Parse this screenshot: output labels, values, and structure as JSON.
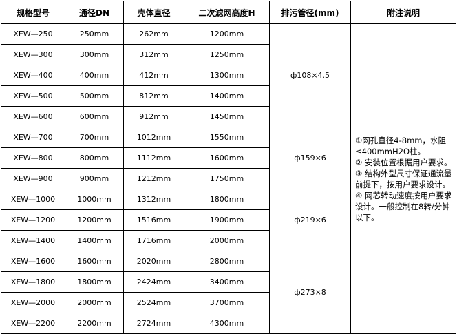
{
  "headers": [
    "规格型号",
    "通径DN",
    "壳体直径",
    "二次滤网高度H",
    "排污管径(mm)",
    "附注说明"
  ],
  "rows": [
    [
      "XEW—250",
      "250mm",
      "262mm",
      "1200mm"
    ],
    [
      "XEW—300",
      "300mm",
      "312mm",
      "1250mm"
    ],
    [
      "XEW—400",
      "400mm",
      "412mm",
      "1300mm"
    ],
    [
      "XEW—500",
      "500mm",
      "812mm",
      "1400mm"
    ],
    [
      "XEW—600",
      "600mm",
      "912mm",
      "1450mm"
    ],
    [
      "XEW—700",
      "700mm",
      "1012mm",
      "1550mm"
    ],
    [
      "XEW—800",
      "800mm",
      "1112mm",
      "1600mm"
    ],
    [
      "XEW—900",
      "900mm",
      "1212mm",
      "1750mm"
    ],
    [
      "XEW—1000",
      "1000mm",
      "1312mm",
      "1800mm"
    ],
    [
      "XEW—1200",
      "1200mm",
      "1516mm",
      "1900mm"
    ],
    [
      "XEW—1400",
      "1400mm",
      "1716mm",
      "2000mm"
    ],
    [
      "XEW—1600",
      "1600mm",
      "2020mm",
      "2800mm"
    ],
    [
      "XEW—1800",
      "1800mm",
      "2424mm",
      "3400mm"
    ],
    [
      "XEW—2000",
      "2000mm",
      "2524mm",
      "3700mm"
    ],
    [
      "XEW—2200",
      "2200mm",
      "2724mm",
      "4300mm"
    ]
  ],
  "drain_groups": [
    {
      "value": "ф108×4.5",
      "rows": 5
    },
    {
      "value": "ф159×6",
      "rows": 3
    },
    {
      "value": "ф219×6",
      "rows": 3
    },
    {
      "value": "ф273×8",
      "rows": 4
    }
  ],
  "notes": [
    "①网孔直径4-8mm，水阻≤400mmH2O柱。",
    "② 安装位置根据用户要求。",
    "③ 结构外型尺寸保证通流量前提下，按用户要求设计。",
    "④ 网芯转动速度按用户要求设计。一般控制在8转/分钟以下。"
  ]
}
